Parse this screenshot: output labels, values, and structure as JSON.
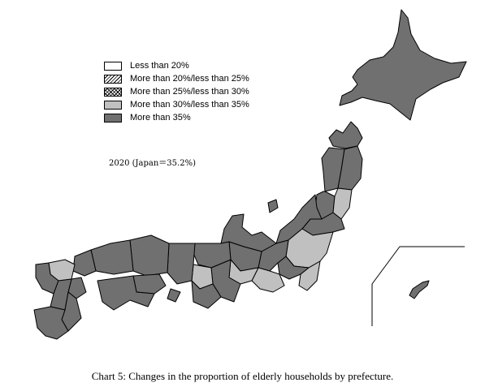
{
  "legend": {
    "items": [
      {
        "label": "Less than 20%",
        "color": "#ffffff"
      },
      {
        "label": "More than 20%/less than 25%",
        "color": "#ffffff"
      },
      {
        "label": "More than 25%/less than 30%",
        "color": "#ffffff"
      },
      {
        "label": "More than 30%/less than 35%",
        "color": "#c0c0c0"
      },
      {
        "label": "More than 35%",
        "color": "#707070"
      }
    ]
  },
  "subtitle": "2020  (Japan＝35.2%)",
  "caption": "Chart 5: Changes in the proportion of elderly households by prefecture.",
  "colors": {
    "above_35": "#707070",
    "between_30_35": "#c0c0c0",
    "below_20": "#ffffff",
    "border": "#000000"
  }
}
